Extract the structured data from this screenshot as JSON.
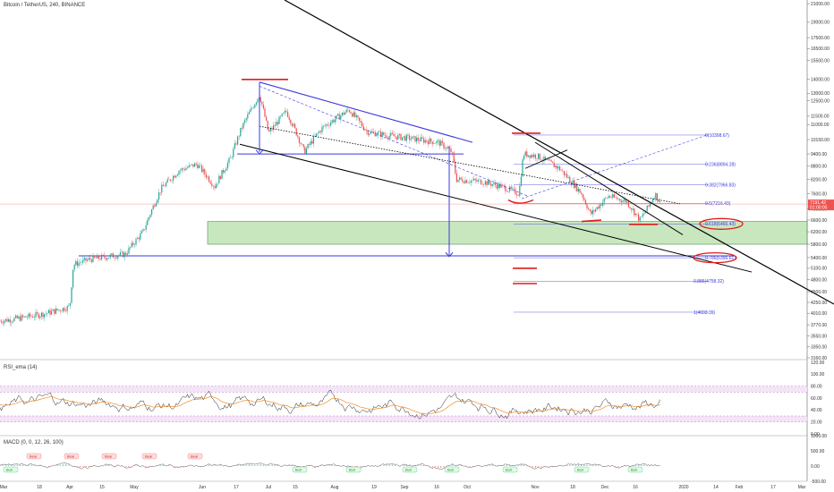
{
  "header": {
    "title": "Bitcoin / TetherUS, 240, BINANCE"
  },
  "colors": {
    "candle_up": "#26a69a",
    "candle_down": "#ef5350",
    "trendline": "#000000",
    "channel": "#3a3ae0",
    "fib": "#3a3ae0",
    "zone_fill": "#bfe3b4",
    "zone_stroke": "#2e7d32",
    "marker": "#e01b1b",
    "rsi_band": "#f3e5f5",
    "price_label_bg": "#ef5350",
    "ema": "#f08a24"
  },
  "chart_data": {
    "type": "candlestick",
    "x_tick_labels": [
      "Mar",
      "18",
      "Apr",
      "15",
      "May",
      "Jun",
      "17",
      "Jul",
      "15",
      "Aug",
      "19",
      "Sep",
      "16",
      "Oct",
      "Nov",
      "18",
      "Dec",
      "16",
      "2020",
      "14",
      "Feb",
      "17",
      "Mar"
    ],
    "y_tick_labels": [
      "21000.00",
      "19000.00",
      "17500.00",
      "16500.00",
      "15500.00",
      "14000.00",
      "13000.00",
      "12500.00",
      "11500.00",
      "11000.00",
      "10150.00",
      "9400.00",
      "8800.00",
      "8200.00",
      "7600.00",
      "7000.00",
      "6600.00",
      "6200.00",
      "5800.00",
      "5400.00",
      "5100.00",
      "4800.00",
      "4500.00",
      "4250.00",
      "4010.00",
      "3770.00",
      "3550.00",
      "3350.00",
      "3160.00"
    ],
    "last_price": "7191.42",
    "countdown": "01:00:00",
    "y_scale": "log",
    "ylim": [
      3160,
      21000
    ],
    "fib_levels": [
      {
        "label": "0(10398.67)",
        "value": 10398.67
      },
      {
        "label": "0.236(8894.28)",
        "value": 8894.28
      },
      {
        "label": "0.382(7966.83)",
        "value": 7966.83
      },
      {
        "label": "0.5(7216.43)",
        "value": 7216.43
      },
      {
        "label": "0.618(6466.43)",
        "value": 6466.43
      },
      {
        "label": "0.786(5396.61)",
        "value": 5396.61
      },
      {
        "label": "0.886(4758.32)",
        "value": 4758.32
      },
      {
        "label": "1(4033.39)",
        "value": 4033.39
      }
    ],
    "support_zone": [
      5800,
      6550
    ],
    "horizontal_levels": [
      9400,
      5450
    ]
  },
  "rsi": {
    "label": "RSI_ema (14)",
    "tick_labels": [
      "120.00",
      "100.00",
      "80.00",
      "60.00",
      "40.00",
      "20.00",
      "0.00"
    ]
  },
  "macd": {
    "label": "MACD (0, 0, 12, 26, 100)",
    "tick_labels": [
      "1000.00",
      "500.00",
      "0.00",
      "-500.00"
    ],
    "bear_tag": "Bear",
    "bull_tag": "Bull"
  }
}
